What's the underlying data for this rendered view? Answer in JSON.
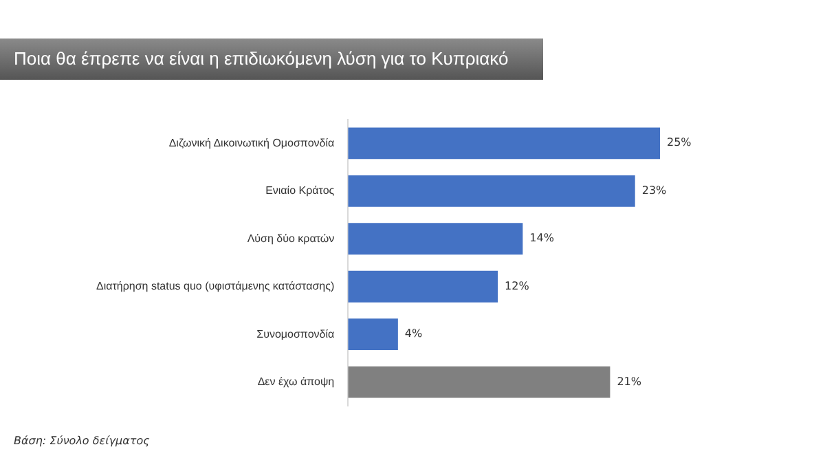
{
  "chart_data": {
    "type": "bar",
    "orientation": "horizontal",
    "title": "Ποια θα έπρεπε να είναι η  επιδιωκόμενη λύση για το Κυπριακό",
    "categories": [
      "Διζωνική Δικοινωτική Ομοσπονδία",
      "Ενιαίο Κράτος",
      "Λύση δύο κρατών",
      "Διατήρηση status quo (υφιστάμενης κατάστασης)",
      "Συνομοσπονδία",
      "Δεν έχω άποψη"
    ],
    "values": [
      25,
      23,
      14,
      12,
      4,
      21
    ],
    "colors": [
      "#4472c4",
      "#4472c4",
      "#4472c4",
      "#4472c4",
      "#4472c4",
      "#808080"
    ],
    "value_labels": [
      "25%",
      "23%",
      "14%",
      "12%",
      "4%",
      "21%"
    ],
    "annotations": [
      "Βάση: Σύνολο δείγματος"
    ],
    "legend": false
  }
}
